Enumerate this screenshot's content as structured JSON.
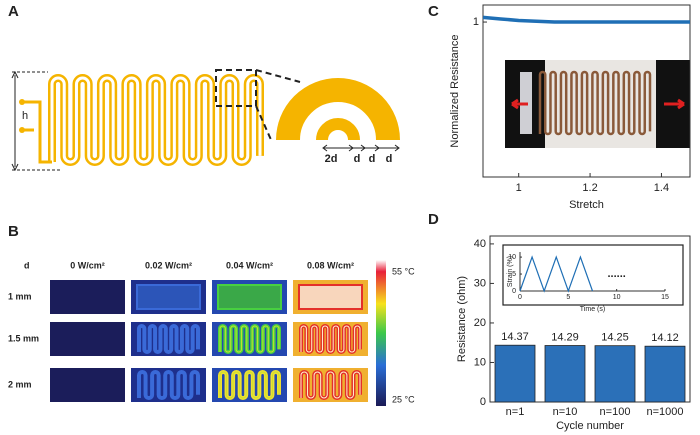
{
  "panel_labels": [
    "A",
    "B",
    "C",
    "D"
  ],
  "diagram": {
    "labels": [
      "h",
      "2d",
      "d",
      "d",
      "d"
    ]
  },
  "heat_map": {
    "row_header": "d",
    "columns": [
      "0 W/cm²",
      "0.02 W/cm²",
      "0.04 W/cm²",
      "0.08 W/cm²"
    ],
    "rows": [
      "1 mm",
      "1.5 mm",
      "2 mm"
    ],
    "colorbar": {
      "max_label": "55 °C",
      "min_label": "25 °C"
    }
  },
  "chart_data": [
    {
      "type": "line",
      "x_label": "Stretch",
      "y_label": "Normalized Resistance",
      "x": [
        0.9,
        0.95,
        1.0,
        1.1,
        1.2,
        1.3,
        1.4,
        1.48
      ],
      "values": [
        1.03,
        1.02,
        1.01,
        1.0,
        1.0,
        1.0,
        1.0,
        1.0
      ],
      "color": "#1f6fb5",
      "xlim": [
        0.9,
        1.48
      ],
      "ylim": [
        0,
        1.11
      ],
      "xticks": [
        1,
        1.2,
        1.4
      ],
      "yticks": [
        1
      ]
    },
    {
      "type": "bar",
      "x_label": "Cycle number",
      "y_label": "Resistance (ohm)",
      "categories": [
        "n=1",
        "n=10",
        "n=100",
        "n=1000"
      ],
      "values": [
        14.37,
        14.29,
        14.25,
        14.12
      ],
      "color": "#2b70b8",
      "ylim": [
        0,
        42
      ],
      "yticks": [
        0,
        10,
        20,
        30,
        40
      ]
    },
    {
      "type": "line",
      "x_label": "Time (s)",
      "y_label": "Strain (%)",
      "x": [
        0,
        1.25,
        2.5,
        3.75,
        5,
        6.25,
        7.5
      ],
      "values": [
        0,
        10,
        0,
        10,
        0,
        10,
        0
      ],
      "color": "#1f6fb5",
      "xlim": [
        0,
        15
      ],
      "ylim": [
        0,
        11.5
      ],
      "xticks": [
        0,
        5,
        10,
        15
      ],
      "yticks": [
        0,
        5,
        10
      ],
      "annotations": [
        "......"
      ]
    }
  ]
}
